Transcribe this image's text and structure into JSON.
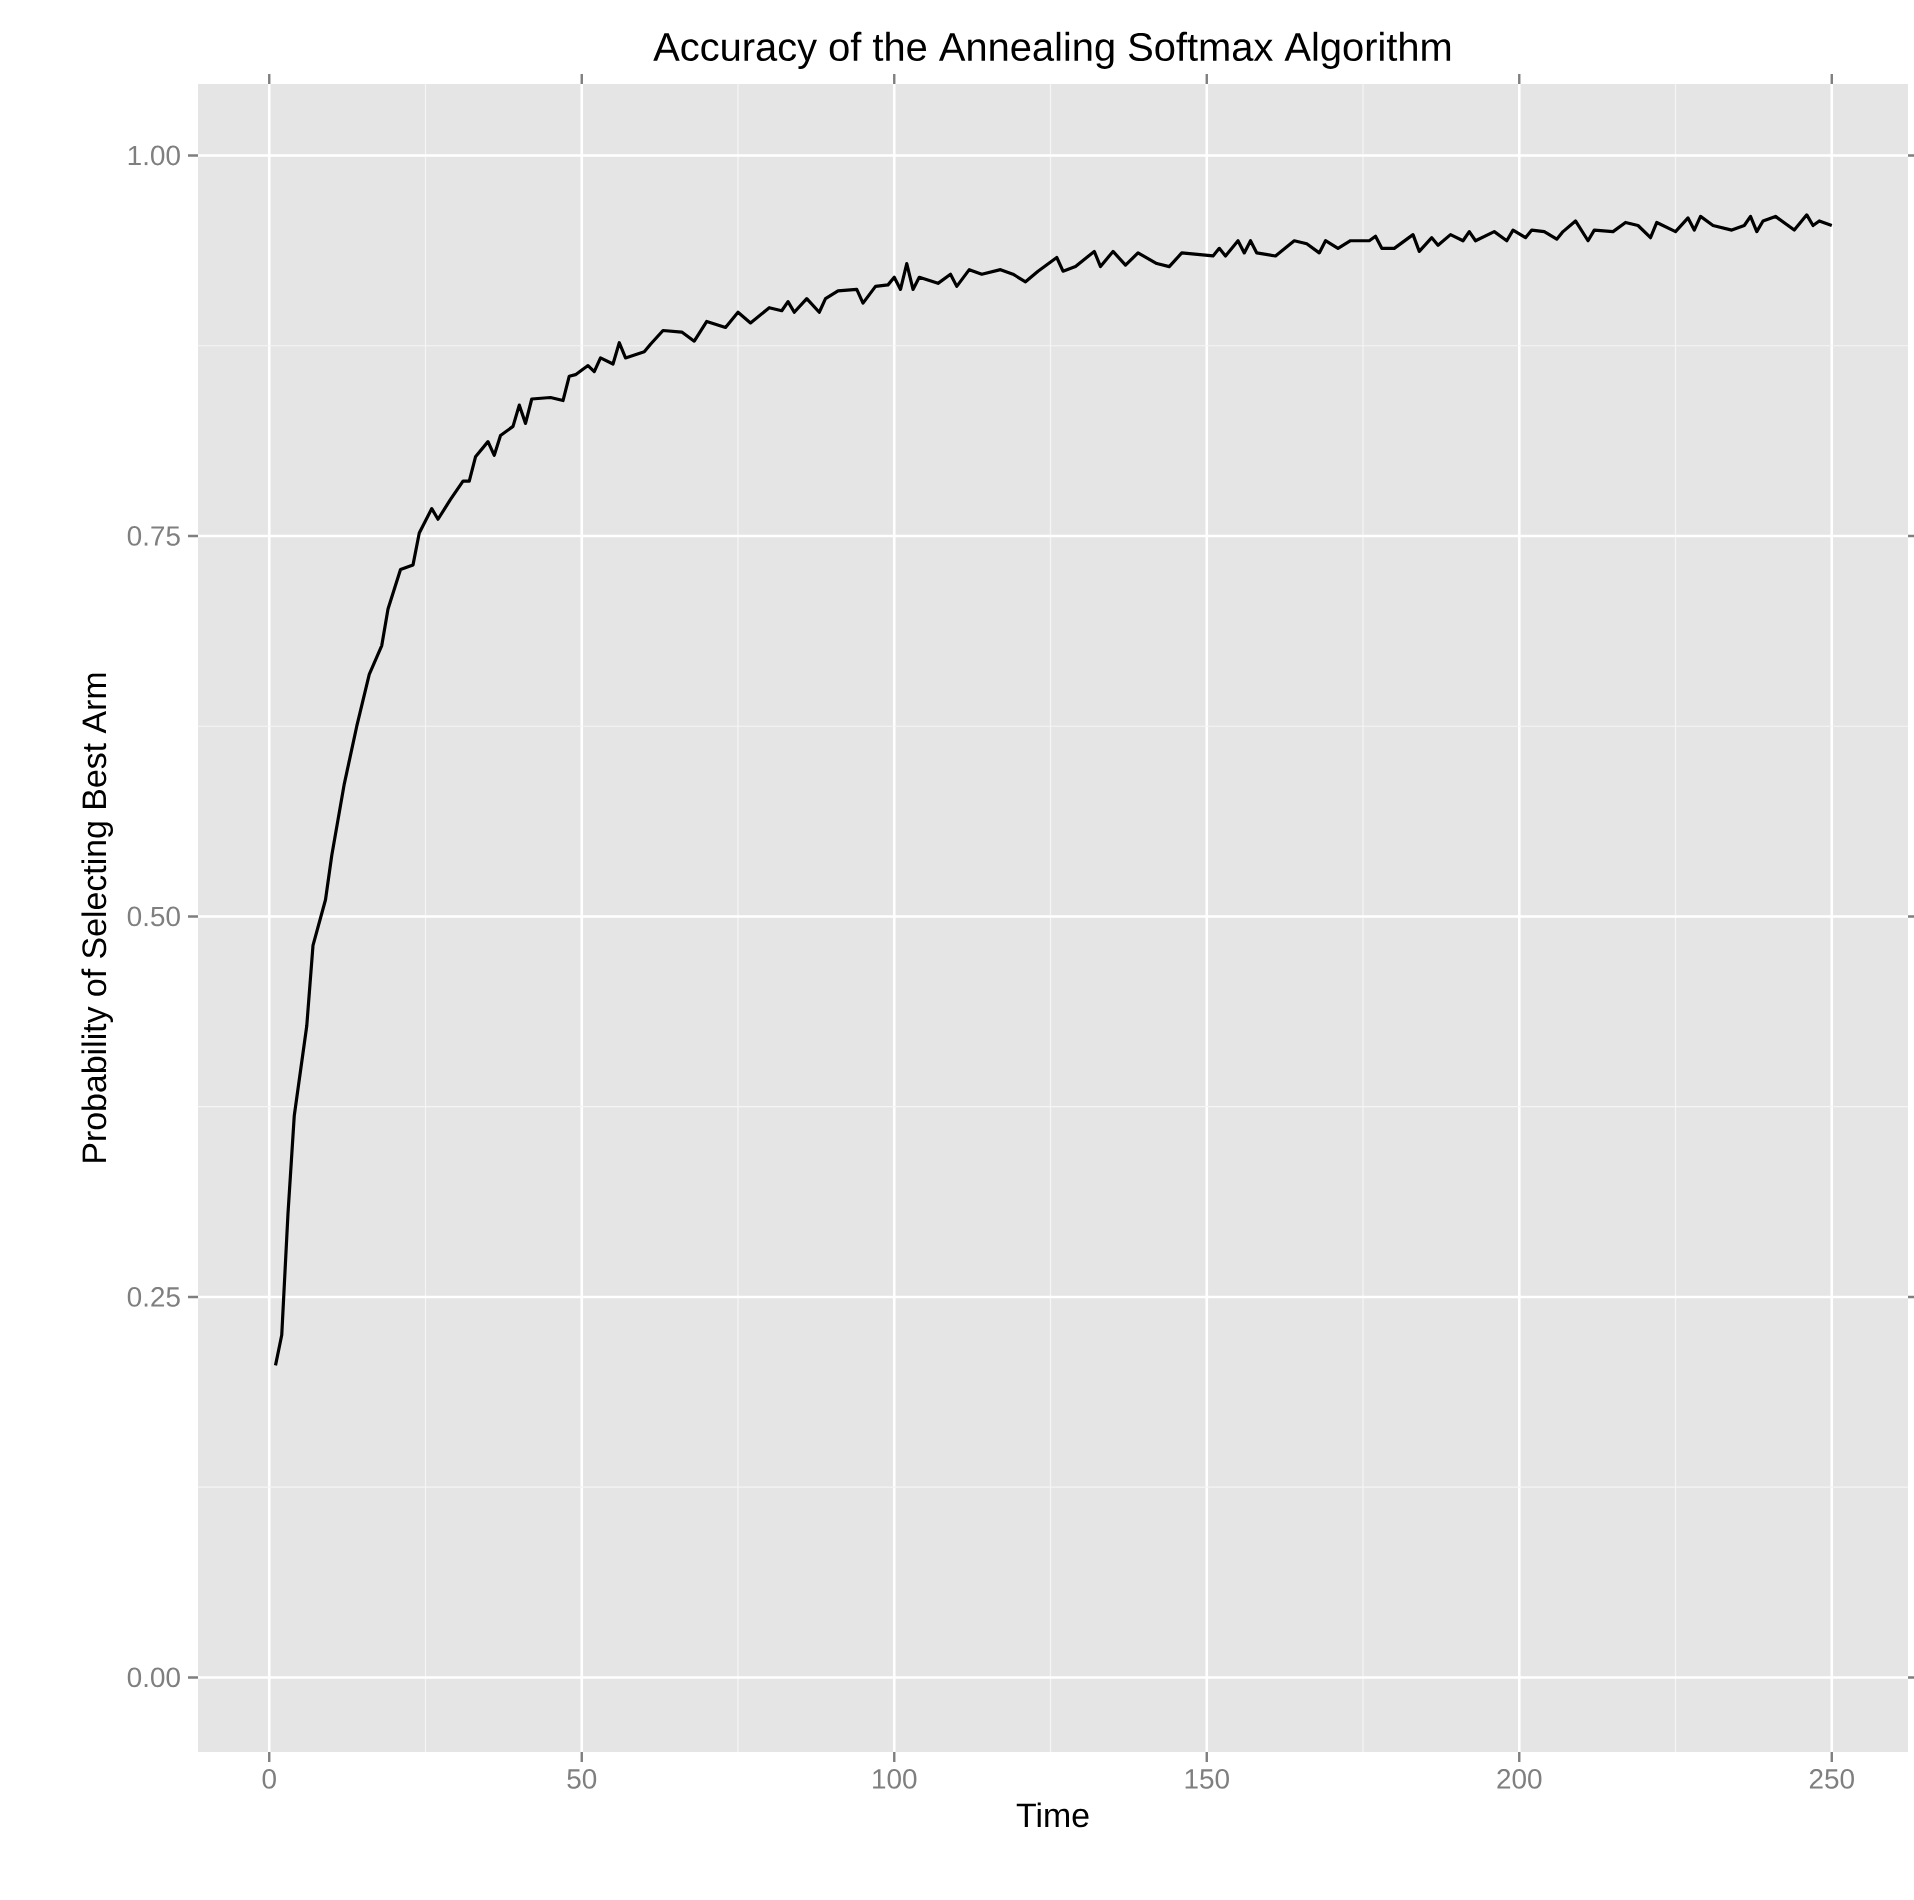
{
  "chart_data": {
    "type": "line",
    "title": "Accuracy of the Annealing Softmax Algorithm",
    "xlabel": "Time",
    "ylabel": "Probability of Selecting Best Arm",
    "xlim": [
      -11.4,
      262.2
    ],
    "ylim": [
      -0.049,
      1.047
    ],
    "xticks": [
      0,
      50,
      100,
      150,
      200,
      250
    ],
    "yticks": [
      {
        "value": 0,
        "label": "0.00"
      },
      {
        "value": 0.25,
        "label": "0.25"
      },
      {
        "value": 0.5,
        "label": "0.50"
      },
      {
        "value": 0.75,
        "label": "0.75"
      },
      {
        "value": 1,
        "label": "1.00"
      }
    ],
    "grid": true,
    "line_style": "solid",
    "marker": "none",
    "series": [
      {
        "color": "#000000",
        "x": [
          1,
          2,
          3,
          4,
          6,
          7,
          9,
          10,
          12,
          14,
          16,
          18,
          19,
          21,
          23,
          24,
          26,
          27,
          29,
          31,
          32,
          33,
          35,
          36,
          37,
          39,
          40,
          41,
          42,
          45,
          47,
          48,
          49,
          51,
          52,
          53,
          55,
          56,
          57,
          60,
          61,
          63,
          66,
          68,
          70,
          73,
          75,
          77,
          80,
          82,
          83,
          84,
          86,
          88,
          89,
          91,
          94,
          95,
          97,
          99,
          100,
          101,
          102,
          103,
          104,
          107,
          109,
          110,
          112,
          114,
          117,
          119,
          121,
          123,
          126,
          127,
          129,
          132,
          133,
          135,
          137,
          139,
          142,
          144,
          146,
          151,
          152,
          153,
          155,
          156,
          157,
          158,
          161,
          164,
          166,
          168,
          169,
          171,
          173,
          176,
          177,
          178,
          180,
          183,
          184,
          186,
          187,
          189,
          191,
          192,
          193,
          196,
          198,
          199,
          201,
          202,
          204,
          206,
          207,
          209,
          211,
          212,
          215,
          217,
          219,
          221,
          222,
          225,
          227,
          228,
          229,
          231,
          234,
          236,
          237,
          238,
          239,
          241,
          244,
          246,
          247,
          248,
          250
        ],
        "values": [
          0.205,
          0.225,
          0.305,
          0.369,
          0.428,
          0.481,
          0.511,
          0.54,
          0.587,
          0.625,
          0.659,
          0.678,
          0.702,
          0.728,
          0.731,
          0.752,
          0.768,
          0.761,
          0.774,
          0.786,
          0.786,
          0.802,
          0.812,
          0.803,
          0.816,
          0.822,
          0.836,
          0.824,
          0.84,
          0.841,
          0.839,
          0.855,
          0.856,
          0.862,
          0.858,
          0.867,
          0.863,
          0.877,
          0.867,
          0.871,
          0.876,
          0.885,
          0.884,
          0.878,
          0.891,
          0.887,
          0.897,
          0.89,
          0.9,
          0.898,
          0.904,
          0.897,
          0.906,
          0.897,
          0.906,
          0.911,
          0.912,
          0.903,
          0.914,
          0.915,
          0.92,
          0.912,
          0.929,
          0.912,
          0.92,
          0.916,
          0.922,
          0.914,
          0.925,
          0.922,
          0.925,
          0.922,
          0.917,
          0.924,
          0.933,
          0.924,
          0.927,
          0.937,
          0.927,
          0.937,
          0.928,
          0.936,
          0.929,
          0.927,
          0.936,
          0.934,
          0.939,
          0.934,
          0.944,
          0.936,
          0.944,
          0.936,
          0.934,
          0.944,
          0.942,
          0.936,
          0.944,
          0.939,
          0.944,
          0.944,
          0.947,
          0.939,
          0.939,
          0.948,
          0.937,
          0.946,
          0.941,
          0.948,
          0.944,
          0.95,
          0.944,
          0.95,
          0.944,
          0.951,
          0.946,
          0.951,
          0.95,
          0.945,
          0.95,
          0.957,
          0.944,
          0.951,
          0.95,
          0.956,
          0.954,
          0.946,
          0.956,
          0.95,
          0.959,
          0.951,
          0.96,
          0.954,
          0.951,
          0.954,
          0.96,
          0.95,
          0.957,
          0.96,
          0.951,
          0.961,
          0.954,
          0.957,
          0.954
        ]
      }
    ]
  }
}
